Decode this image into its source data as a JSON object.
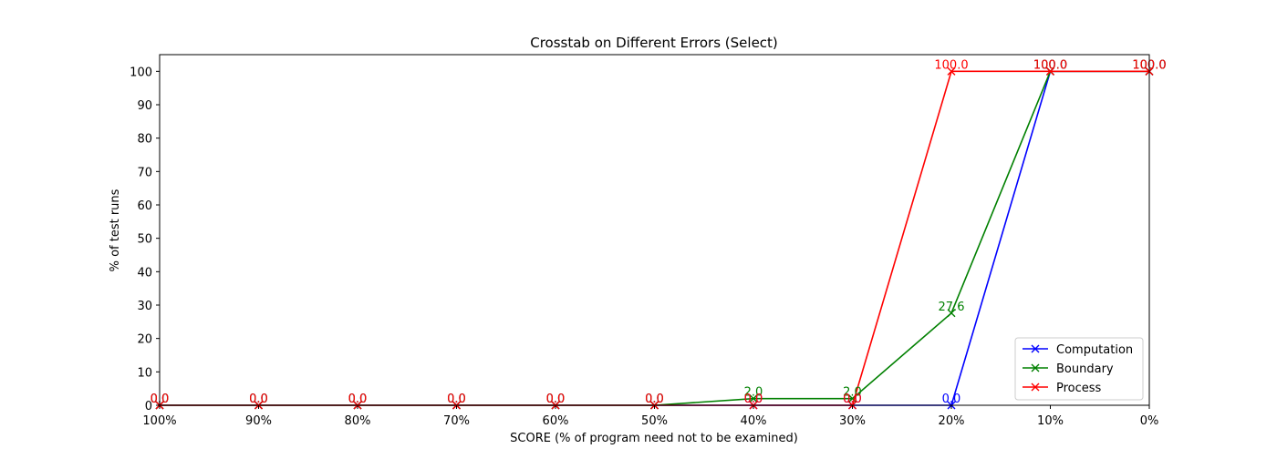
{
  "chart_data": {
    "type": "line",
    "title": "Crosstab on Different Errors (Select)",
    "xlabel": "SCORE (% of program need not to be examined)",
    "ylabel": "% of test runs",
    "categories": [
      "100%",
      "90%",
      "80%",
      "70%",
      "60%",
      "50%",
      "40%",
      "30%",
      "20%",
      "10%",
      "0%"
    ],
    "yticks": [
      0,
      10,
      20,
      30,
      40,
      50,
      60,
      70,
      80,
      90,
      100
    ],
    "ylim": [
      0,
      105
    ],
    "grid": false,
    "legend_position": "lower right",
    "marker": "x",
    "series": [
      {
        "name": "Computation",
        "color": "#0000ff",
        "values": [
          0.0,
          0.0,
          0.0,
          0.0,
          0.0,
          0.0,
          0.0,
          0.0,
          0.0,
          100.0,
          100.0
        ],
        "labels": [
          "0.0",
          "0.0",
          "0.0",
          "0.0",
          "0.0",
          "0.0",
          "0.0",
          "0.0",
          "0.0",
          "100.0",
          "100.0"
        ]
      },
      {
        "name": "Boundary",
        "color": "#008000",
        "values": [
          0.0,
          0.0,
          0.0,
          0.0,
          0.0,
          0.0,
          2.0,
          2.0,
          27.6,
          100.0,
          100.0
        ],
        "labels": [
          "0.0",
          "0.0",
          "0.0",
          "0.0",
          "0.0",
          "0.0",
          "2.0",
          "2.0",
          "27.6",
          "100.0",
          "100.0"
        ]
      },
      {
        "name": "Process",
        "color": "#ff0000",
        "values": [
          0.0,
          0.0,
          0.0,
          0.0,
          0.0,
          0.0,
          0.0,
          0.0,
          100.0,
          100.0,
          100.0
        ],
        "labels": [
          "0.0",
          "0.0",
          "0.0",
          "0.0",
          "0.0",
          "0.0",
          "0.0",
          "0.0",
          "100.0",
          "100.0",
          "100.0"
        ]
      }
    ]
  }
}
